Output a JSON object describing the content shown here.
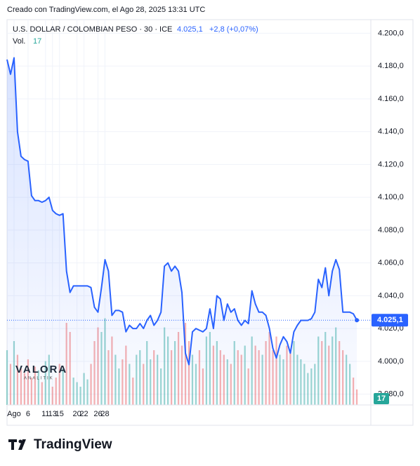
{
  "chart_data": {
    "type": "area",
    "caption": "Creado con TradingView.com, el Ago 28, 2025 13:31 UTC",
    "title": "U.S. DOLLAR / COLOMBIAN PESO · 30 · ICE",
    "last_price": {
      "value": 4025.1,
      "label": "4.025,1"
    },
    "change": "+2,8 (+0,07%)",
    "volume_label": "Vol.",
    "watermark": "VALORA",
    "watermark_sub": "ANALITIK",
    "brand": "TradingView",
    "color": "#2962ff",
    "up_color": "#26a69a",
    "down_color": "#ef5350",
    "values": [
      4184,
      4175,
      4185,
      4140,
      4125,
      4123,
      4122,
      4101,
      4098,
      4098,
      4097,
      4098,
      4100,
      4092,
      4090,
      4089,
      4090,
      4055,
      4042,
      4046,
      4046,
      4046,
      4046,
      4046,
      4045,
      4033,
      4030,
      4045,
      4062,
      4055,
      4028,
      4031,
      4031,
      4030,
      4018,
      4022,
      4020,
      4020,
      4023,
      4020,
      4025,
      4028,
      4022,
      4025,
      4030,
      4058,
      4060,
      4055,
      4058,
      4055,
      4042,
      4005,
      3998,
      4018,
      4020,
      4019,
      4018,
      4020,
      4032,
      4020,
      4040,
      4038,
      4025,
      4035,
      4030,
      4032,
      4025,
      4022,
      4025,
      4023,
      4043,
      4035,
      4030,
      4030,
      4028,
      4020,
      4008,
      4002,
      4010,
      4015,
      4012,
      4005,
      4018,
      4022,
      4025,
      4025,
      4025,
      4026,
      4030,
      4050,
      4045,
      4057,
      4040,
      4055,
      4062,
      4056,
      4030,
      4030,
      4030,
      4029,
      4025.1
    ],
    "volume": [
      60,
      45,
      70,
      55,
      40,
      35,
      50,
      30,
      42,
      38,
      25,
      48,
      55,
      20,
      30,
      45,
      40,
      90,
      80,
      30,
      25,
      20,
      35,
      28,
      45,
      70,
      85,
      80,
      95,
      60,
      75,
      55,
      40,
      50,
      65,
      45,
      30,
      55,
      60,
      45,
      70,
      50,
      60,
      55,
      40,
      85,
      75,
      60,
      70,
      80,
      65,
      90,
      70,
      55,
      45,
      60,
      40,
      75,
      80,
      65,
      70,
      60,
      55,
      50,
      45,
      70,
      60,
      55,
      65,
      40,
      75,
      65,
      60,
      55,
      70,
      80,
      60,
      75,
      55,
      50,
      65,
      60,
      70,
      55,
      50,
      45,
      35,
      40,
      45,
      75,
      70,
      80,
      65,
      75,
      85,
      70,
      60,
      55,
      45,
      30,
      17
    ],
    "volume_lim": [
      0,
      100
    ],
    "xlim": [
      0,
      104
    ],
    "xticks": [
      {
        "value": 2,
        "label": "Ago"
      },
      6,
      11,
      13,
      15,
      20,
      22,
      26,
      28
    ],
    "ylim": [
      3976,
      4204
    ],
    "yticks": [
      {
        "value": 3980,
        "label": "3.980,0"
      },
      {
        "value": 4000,
        "label": "4.000,0"
      },
      {
        "value": 4020,
        "label": "4.020,0"
      },
      {
        "value": 4040,
        "label": "4.040,0"
      },
      {
        "value": 4060,
        "label": "4.060,0"
      },
      {
        "value": 4080,
        "label": "4.080,0"
      },
      {
        "value": 4100,
        "label": "4.100,0"
      },
      {
        "value": 4120,
        "label": "4.120,0"
      },
      {
        "value": 4140,
        "label": "4.140,0"
      },
      {
        "value": 4160,
        "label": "4.160,0"
      },
      {
        "value": 4180,
        "label": "4.180,0"
      },
      {
        "value": 4200,
        "label": "4.200,0"
      }
    ],
    "grid": true
  }
}
